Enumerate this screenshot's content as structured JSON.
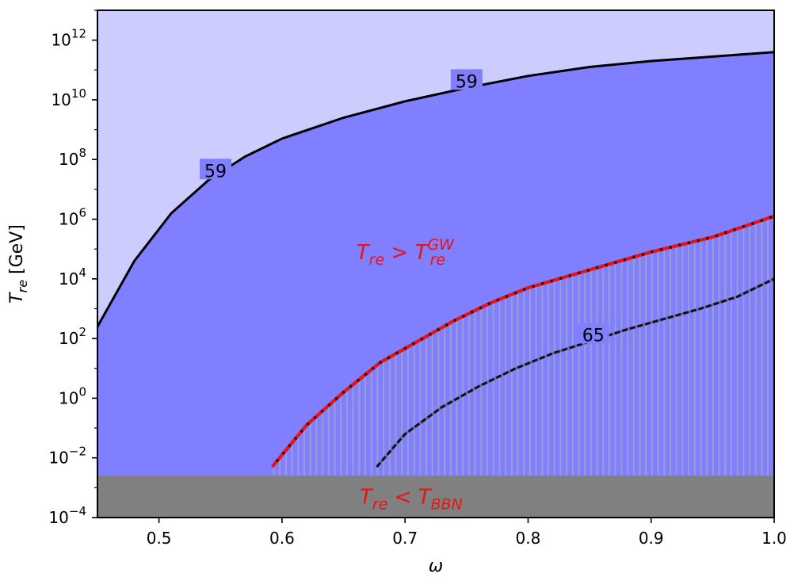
{
  "chart_data": {
    "type": "area",
    "x_label": "ω",
    "y_label": "T",
    "y_label_sub": "re",
    "y_label_unit": " [GeV]",
    "xlim": [
      0.45,
      1.0
    ],
    "ylim_log10": [
      -4,
      13
    ],
    "y_scale": "log",
    "x_ticks": [
      "0.5",
      "0.6",
      "0.7",
      "0.8",
      "0.9",
      "1.0"
    ],
    "x_tick_values": [
      0.5,
      0.6,
      0.7,
      0.8,
      0.9,
      1.0
    ],
    "y_ticks_exp": [
      "-4",
      "-2",
      "0",
      "2",
      "4",
      "6",
      "8",
      "10",
      "12"
    ],
    "y_tick_base": "10",
    "bbn_log10T": -2.6,
    "colors": {
      "outer_region": "#ccccff",
      "inner_region": "#7f7fff",
      "bbn_region": "#808080",
      "hatch": "#9a9ad6",
      "contour": "#000000",
      "gw_boundary": "#ee1111",
      "region_text": "#ee1111"
    },
    "series": [
      {
        "label": "59",
        "style": "solid",
        "x": [
          0.45,
          0.48,
          0.51,
          0.54,
          0.57,
          0.6,
          0.65,
          0.7,
          0.75,
          0.8,
          0.85,
          0.9,
          0.95,
          1.0
        ],
        "log10_y": [
          2.4,
          4.6,
          6.2,
          7.3,
          8.1,
          8.7,
          9.4,
          9.95,
          10.4,
          10.8,
          11.1,
          11.3,
          11.45,
          11.6
        ]
      },
      {
        "label": "",
        "style": "dashed-red",
        "x": [
          0.592,
          0.62,
          0.65,
          0.68,
          0.71,
          0.74,
          0.77,
          0.8,
          0.85,
          0.9,
          0.95,
          1.0
        ],
        "log10_y": [
          -2.3,
          -0.9,
          0.2,
          1.2,
          1.9,
          2.6,
          3.2,
          3.7,
          4.3,
          4.9,
          5.4,
          6.1
        ]
      },
      {
        "label": "65",
        "style": "dashed-black",
        "x": [
          0.677,
          0.7,
          0.73,
          0.76,
          0.79,
          0.82,
          0.85,
          0.88,
          0.91,
          0.94,
          0.97,
          1.0
        ],
        "log10_y": [
          -2.3,
          -1.2,
          -0.3,
          0.4,
          1.0,
          1.5,
          1.9,
          2.3,
          2.65,
          3.0,
          3.4,
          4.0
        ]
      }
    ],
    "contour_labels": [
      {
        "text": "59",
        "x": 0.75,
        "log10_y": 10.6
      },
      {
        "text": "59",
        "x": 0.546,
        "log10_y": 7.6
      },
      {
        "text": "65",
        "x": 0.853,
        "log10_y": 2.1
      }
    ],
    "annotations": [
      {
        "id": "gw",
        "base": "T",
        "sub": "re",
        "op": " > ",
        "base2": "T",
        "sub2": "re",
        "sup2": "GW",
        "x": 0.7,
        "log10_y": 4.9
      },
      {
        "id": "bbn",
        "base": "T",
        "sub": "re",
        "op": " < ",
        "base2": "T",
        "sub2": "BBN",
        "sup2": "",
        "x": 0.705,
        "log10_y": -3.3
      }
    ]
  }
}
